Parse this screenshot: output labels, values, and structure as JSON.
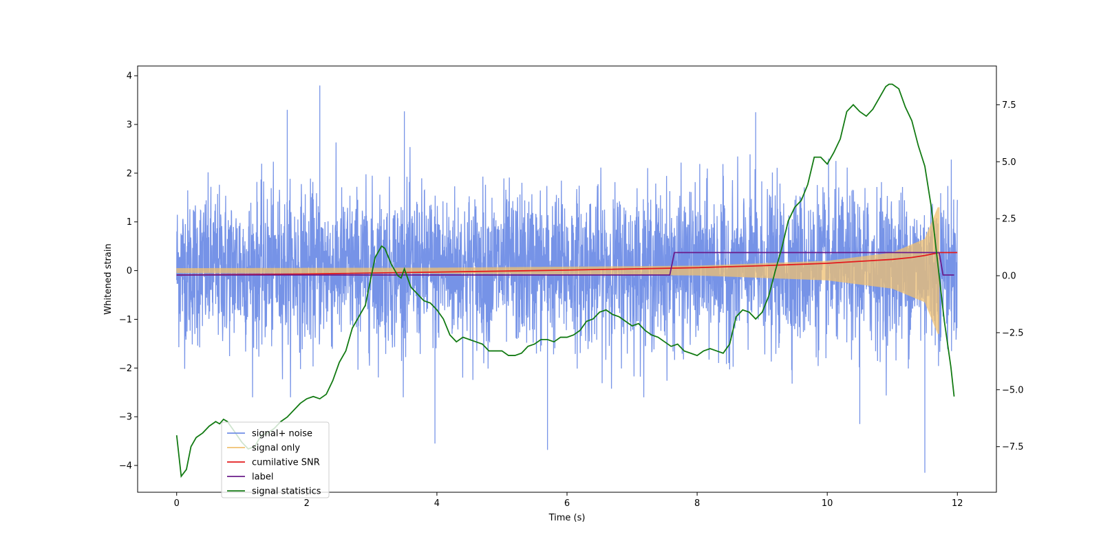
{
  "chart_data": {
    "type": "line",
    "title": "",
    "xlabel": "Time (s)",
    "ylabel": "Whitened strain",
    "y2label": "",
    "xlim": [
      -0.6,
      12.6
    ],
    "ylim": [
      -4.55,
      4.2
    ],
    "y2lim": [
      -9.5,
      9.2
    ],
    "xticks": [
      0,
      2,
      4,
      6,
      8,
      10,
      12
    ],
    "xtick_labels": [
      "0",
      "2",
      "4",
      "6",
      "8",
      "10",
      "12"
    ],
    "yticks": [
      -4,
      -3,
      -2,
      -1,
      0,
      1,
      2,
      3,
      4
    ],
    "ytick_labels": [
      "−4",
      "−3",
      "−2",
      "−1",
      "0",
      "1",
      "2",
      "3",
      "4"
    ],
    "y2ticks": [
      -7.5,
      -5.0,
      -2.5,
      0.0,
      2.5,
      5.0,
      7.5
    ],
    "y2tick_labels": [
      "−7.5",
      "−5.0",
      "−2.5",
      "0.0",
      "2.5",
      "5.0",
      "7.5"
    ],
    "legend_position": "lower-left",
    "series": [
      {
        "name": "signal+ noise",
        "axis": "left",
        "color": "#6f8de6",
        "kind": "noise-band",
        "x_range": [
          0,
          12
        ],
        "typical_range": [
          -1.7,
          1.8
        ],
        "peaks": [
          [
            2.2,
            3.8
          ],
          [
            5.7,
            -3.68
          ],
          [
            11.5,
            -4.15
          ],
          [
            8.9,
            3.25
          ],
          [
            3.5,
            3.27
          ],
          [
            1.7,
            3.3
          ],
          [
            3.97,
            -3.55
          ],
          [
            10.5,
            -3.15
          ]
        ]
      },
      {
        "name": "signal only",
        "axis": "left",
        "color": "#f0c070",
        "kind": "chirp-envelope",
        "x_range": [
          0,
          11.72
        ],
        "amplitude": [
          [
            0,
            0.05
          ],
          [
            4,
            0.06
          ],
          [
            8,
            0.1
          ],
          [
            10,
            0.2
          ],
          [
            11,
            0.37
          ],
          [
            11.5,
            0.65
          ],
          [
            11.7,
            1.3
          ]
        ]
      },
      {
        "name": "cumilative SNR",
        "axis": "left",
        "color": "#e31a1c",
        "x": [
          0,
          2,
          4,
          6,
          8,
          9,
          10,
          10.5,
          11,
          11.3,
          11.5,
          11.65,
          11.72,
          12
        ],
        "y": [
          -0.09,
          -0.07,
          -0.03,
          0.01,
          0.06,
          0.1,
          0.15,
          0.19,
          0.23,
          0.27,
          0.31,
          0.35,
          0.37,
          0.37
        ]
      },
      {
        "name": "label",
        "axis": "left",
        "color": "#6a1b8a",
        "x": [
          0,
          7.58,
          7.65,
          11.72,
          11.78,
          11.95
        ],
        "y": [
          -0.09,
          -0.09,
          0.37,
          0.37,
          -0.09,
          -0.09
        ]
      },
      {
        "name": "signal statistics",
        "axis": "right",
        "color": "#127a12",
        "x": [
          0,
          0.07,
          0.15,
          0.22,
          0.3,
          0.4,
          0.5,
          0.6,
          0.66,
          0.72,
          0.78,
          0.88,
          1.0,
          1.1,
          1.2,
          1.3,
          1.4,
          1.5,
          1.6,
          1.7,
          1.8,
          1.9,
          2.0,
          2.1,
          2.2,
          2.3,
          2.4,
          2.5,
          2.6,
          2.7,
          2.8,
          2.9,
          2.95,
          3.05,
          3.15,
          3.2,
          3.3,
          3.4,
          3.45,
          3.5,
          3.6,
          3.7,
          3.8,
          3.9,
          4.0,
          4.1,
          4.2,
          4.3,
          4.4,
          4.5,
          4.6,
          4.7,
          4.8,
          4.9,
          5.0,
          5.1,
          5.2,
          5.3,
          5.4,
          5.5,
          5.6,
          5.7,
          5.8,
          5.9,
          6.0,
          6.1,
          6.2,
          6.3,
          6.4,
          6.5,
          6.6,
          6.7,
          6.8,
          6.9,
          7.0,
          7.1,
          7.2,
          7.3,
          7.4,
          7.5,
          7.6,
          7.7,
          7.8,
          7.9,
          8.0,
          8.1,
          8.2,
          8.3,
          8.4,
          8.5,
          8.6,
          8.7,
          8.8,
          8.9,
          9.0,
          9.1,
          9.2,
          9.3,
          9.4,
          9.5,
          9.6,
          9.7,
          9.8,
          9.9,
          10.0,
          10.1,
          10.2,
          10.3,
          10.4,
          10.5,
          10.6,
          10.7,
          10.8,
          10.9,
          10.95,
          11.0,
          11.1,
          11.2,
          11.3,
          11.4,
          11.5,
          11.6,
          11.7,
          11.8,
          11.9,
          11.95
        ],
        "y": [
          -7.0,
          -8.8,
          -8.5,
          -7.5,
          -7.1,
          -6.9,
          -6.6,
          -6.4,
          -6.5,
          -6.3,
          -6.4,
          -6.8,
          -7.3,
          -7.6,
          -7.5,
          -7.0,
          -6.9,
          -6.7,
          -6.4,
          -6.2,
          -5.9,
          -5.6,
          -5.4,
          -5.3,
          -5.4,
          -5.2,
          -4.6,
          -3.8,
          -3.3,
          -2.3,
          -1.8,
          -1.3,
          -0.6,
          0.8,
          1.3,
          1.2,
          0.5,
          0.0,
          -0.1,
          0.3,
          -0.5,
          -0.8,
          -1.1,
          -1.2,
          -1.5,
          -1.9,
          -2.6,
          -2.9,
          -2.7,
          -2.8,
          -2.9,
          -3.0,
          -3.3,
          -3.3,
          -3.3,
          -3.5,
          -3.5,
          -3.4,
          -3.1,
          -3.0,
          -2.8,
          -2.8,
          -2.9,
          -2.7,
          -2.7,
          -2.6,
          -2.4,
          -2.0,
          -1.9,
          -1.6,
          -1.5,
          -1.7,
          -1.8,
          -2.0,
          -2.2,
          -2.1,
          -2.4,
          -2.6,
          -2.7,
          -2.9,
          -3.1,
          -3.0,
          -3.3,
          -3.4,
          -3.5,
          -3.3,
          -3.2,
          -3.3,
          -3.4,
          -3.0,
          -1.8,
          -1.5,
          -1.6,
          -1.9,
          -1.6,
          -0.9,
          0.2,
          1.2,
          2.4,
          3.0,
          3.3,
          4.0,
          5.2,
          5.2,
          4.9,
          5.4,
          6.0,
          7.2,
          7.5,
          7.2,
          7.0,
          7.3,
          7.8,
          8.3,
          8.4,
          8.4,
          8.2,
          7.4,
          6.8,
          5.7,
          4.8,
          3.0,
          0.5,
          -2.0,
          -4.0,
          -5.3
        ]
      }
    ]
  }
}
